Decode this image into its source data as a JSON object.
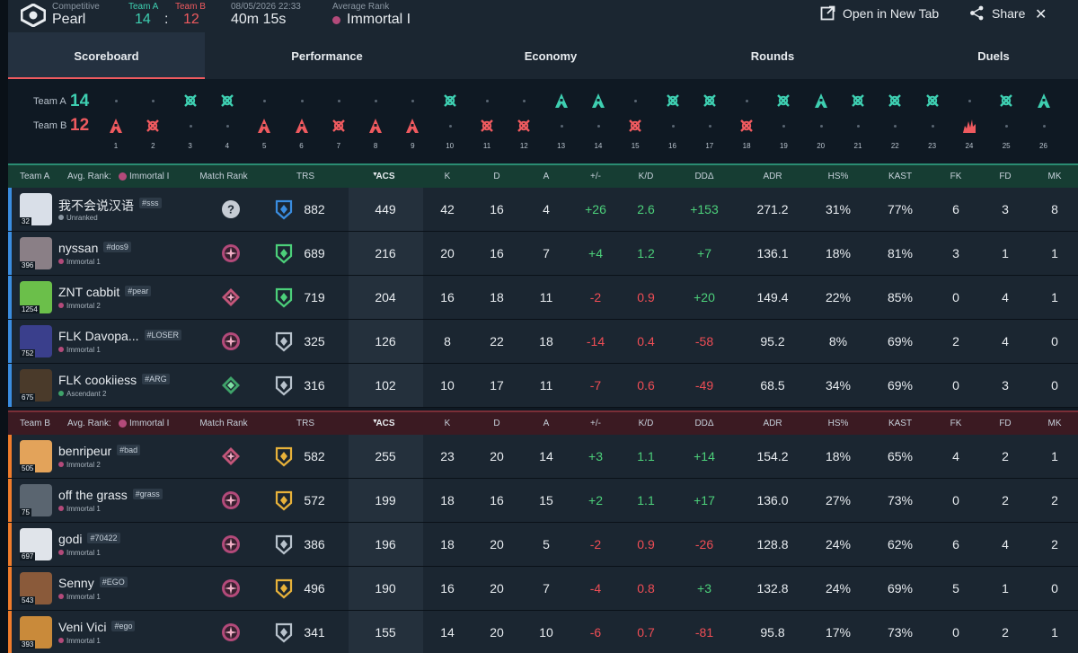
{
  "header": {
    "mode": "Competitive",
    "map": "Pearl",
    "team_a_label": "Team A",
    "team_b_label": "Team B",
    "team_a_score": "14",
    "team_b_score": "12",
    "score_sep": ":",
    "datetime": "08/05/2026 22:33",
    "duration": "40m 15s",
    "avg_rank_label": "Average Rank",
    "avg_rank": "Immortal I",
    "open_tab": "Open in New Tab",
    "share": "Share",
    "close": "✕"
  },
  "tabs": [
    "Scoreboard",
    "Performance",
    "Economy",
    "Rounds",
    "Duels"
  ],
  "timeline": {
    "team_a_label": "Team A",
    "team_b_label": "Team B",
    "team_a_score": "14",
    "team_b_score": "12",
    "rounds": [
      "1",
      "2",
      "3",
      "4",
      "5",
      "6",
      "7",
      "8",
      "9",
      "10",
      "11",
      "12",
      "13",
      "14",
      "15",
      "16",
      "17",
      "18",
      "19",
      "20",
      "21",
      "22",
      "23",
      "24",
      "25",
      "26"
    ],
    "winners": [
      "B",
      "B",
      "A",
      "A",
      "B",
      "B",
      "B",
      "B",
      "B",
      "A",
      "B",
      "B",
      "A",
      "A",
      "B",
      "A",
      "A",
      "B",
      "A",
      "A",
      "A",
      "A",
      "A",
      "B",
      "A",
      "A"
    ],
    "icons": [
      "bomb",
      "elim",
      "elim",
      "elim",
      "bomb",
      "bomb",
      "elim",
      "bomb",
      "bomb",
      "elim",
      "elim",
      "elim",
      "defuse",
      "defuse",
      "elim",
      "elim",
      "elim",
      "elim",
      "elim",
      "defuse",
      "elim",
      "elim",
      "elim",
      "explode",
      "elim",
      "defuse"
    ]
  },
  "team_a_header": {
    "team": "Team A",
    "avg_label": "Avg. Rank:",
    "avg_rank": "Immortal I"
  },
  "team_b_header": {
    "team": "Team B",
    "avg_label": "Avg. Rank:",
    "avg_rank": "Immortal I"
  },
  "columns": {
    "match_rank": "Match Rank",
    "trs": "TRS",
    "acs": "ACS",
    "k": "K",
    "d": "D",
    "a": "A",
    "pm": "+/-",
    "kd": "K/D",
    "dd": "DDΔ",
    "adr": "ADR",
    "hs": "HS%",
    "kast": "KAST",
    "fk": "FK",
    "fd": "FD",
    "mk": "MK"
  },
  "team_a": [
    {
      "name": "我不会说汉语",
      "tag": "#sss",
      "rank": "Unranked",
      "level": "32",
      "trs": "882",
      "acs": "449",
      "k": "42",
      "d": "16",
      "a": "4",
      "pm": "+26",
      "kd": "2.6",
      "dd": "+153",
      "adr": "271.2",
      "hs": "31%",
      "kast": "77%",
      "fk": "6",
      "fd": "3",
      "mk": "8",
      "avatar_color": "#d9dfe8",
      "mr": "unranked",
      "trs_color": "#3a8de0"
    },
    {
      "name": "nyssan",
      "tag": "#dos9",
      "rank": "Immortal 1",
      "level": "396",
      "trs": "689",
      "acs": "216",
      "k": "20",
      "d": "16",
      "a": "7",
      "pm": "+4",
      "kd": "1.2",
      "dd": "+7",
      "adr": "136.1",
      "hs": "18%",
      "kast": "81%",
      "fk": "3",
      "fd": "1",
      "mk": "1",
      "avatar_color": "#8a7f86",
      "mr": "immortal",
      "trs_color": "#4cd07a"
    },
    {
      "name": "ZNT cabbit",
      "tag": "#pear",
      "rank": "Immortal 2",
      "level": "1254",
      "trs": "719",
      "acs": "204",
      "k": "16",
      "d": "18",
      "a": "11",
      "pm": "-2",
      "kd": "0.9",
      "dd": "+20",
      "adr": "149.4",
      "hs": "22%",
      "kast": "85%",
      "fk": "0",
      "fd": "4",
      "mk": "1",
      "avatar_color": "#6bbf4a",
      "mr": "immortal2",
      "trs_color": "#4cd07a"
    },
    {
      "name": "FLK Davopa...",
      "tag": "#LOSER",
      "rank": "Immortal 1",
      "level": "752",
      "trs": "325",
      "acs": "126",
      "k": "8",
      "d": "22",
      "a": "18",
      "pm": "-14",
      "kd": "0.4",
      "dd": "-58",
      "adr": "95.2",
      "hs": "8%",
      "kast": "69%",
      "fk": "2",
      "fd": "4",
      "mk": "0",
      "avatar_color": "#3a3f8c",
      "mr": "immortal",
      "trs_color": "#b8c2cc"
    },
    {
      "name": "FLK cookiiess",
      "tag": "#ARG",
      "rank": "Ascendant 2",
      "level": "675",
      "trs": "316",
      "acs": "102",
      "k": "10",
      "d": "17",
      "a": "11",
      "pm": "-7",
      "kd": "0.6",
      "dd": "-49",
      "adr": "68.5",
      "hs": "34%",
      "kast": "69%",
      "fk": "0",
      "fd": "3",
      "mk": "0",
      "avatar_color": "#4a3a2a",
      "mr": "ascendant",
      "trs_color": "#b8c2cc"
    }
  ],
  "team_b": [
    {
      "name": "benripeur",
      "tag": "#bad",
      "rank": "Immortal 2",
      "level": "505",
      "trs": "582",
      "acs": "255",
      "k": "23",
      "d": "20",
      "a": "14",
      "pm": "+3",
      "kd": "1.1",
      "dd": "+14",
      "adr": "154.2",
      "hs": "18%",
      "kast": "65%",
      "fk": "4",
      "fd": "2",
      "mk": "1",
      "avatar_color": "#e3a35a",
      "mr": "immortal2",
      "trs_color": "#e8b23a"
    },
    {
      "name": "off the grass",
      "tag": "#grass",
      "rank": "Immortal 1",
      "level": "75",
      "trs": "572",
      "acs": "199",
      "k": "18",
      "d": "16",
      "a": "15",
      "pm": "+2",
      "kd": "1.1",
      "dd": "+17",
      "adr": "136.0",
      "hs": "27%",
      "kast": "73%",
      "fk": "0",
      "fd": "2",
      "mk": "2",
      "avatar_color": "#5a6570",
      "mr": "immortal",
      "trs_color": "#e8b23a"
    },
    {
      "name": "godi",
      "tag": "#70422",
      "rank": "Immortal 1",
      "level": "697",
      "trs": "386",
      "acs": "196",
      "k": "18",
      "d": "20",
      "a": "5",
      "pm": "-2",
      "kd": "0.9",
      "dd": "-26",
      "adr": "128.8",
      "hs": "24%",
      "kast": "62%",
      "fk": "6",
      "fd": "4",
      "mk": "2",
      "avatar_color": "#e0e4ea",
      "mr": "immortal",
      "trs_color": "#b8c2cc"
    },
    {
      "name": "Senny",
      "tag": "#EGO",
      "rank": "Immortal 1",
      "level": "543",
      "trs": "496",
      "acs": "190",
      "k": "16",
      "d": "20",
      "a": "7",
      "pm": "-4",
      "kd": "0.8",
      "dd": "+3",
      "adr": "132.8",
      "hs": "24%",
      "kast": "69%",
      "fk": "5",
      "fd": "1",
      "mk": "0",
      "avatar_color": "#8a5a3a",
      "mr": "immortal",
      "trs_color": "#e8b23a"
    },
    {
      "name": "Veni Vici",
      "tag": "#ego",
      "rank": "Immortal 1",
      "level": "393",
      "trs": "341",
      "acs": "155",
      "k": "14",
      "d": "20",
      "a": "10",
      "pm": "-6",
      "kd": "0.7",
      "dd": "-81",
      "adr": "95.8",
      "hs": "17%",
      "kast": "73%",
      "fk": "0",
      "fd": "2",
      "mk": "1",
      "avatar_color": "#c98a3a",
      "mr": "immortal",
      "trs_color": "#b8c2cc"
    }
  ],
  "colors": {
    "team_a": "#3ecfb1",
    "team_b": "#ef5a5f",
    "positive": "#4cd07a",
    "negative": "#ef4d55"
  }
}
